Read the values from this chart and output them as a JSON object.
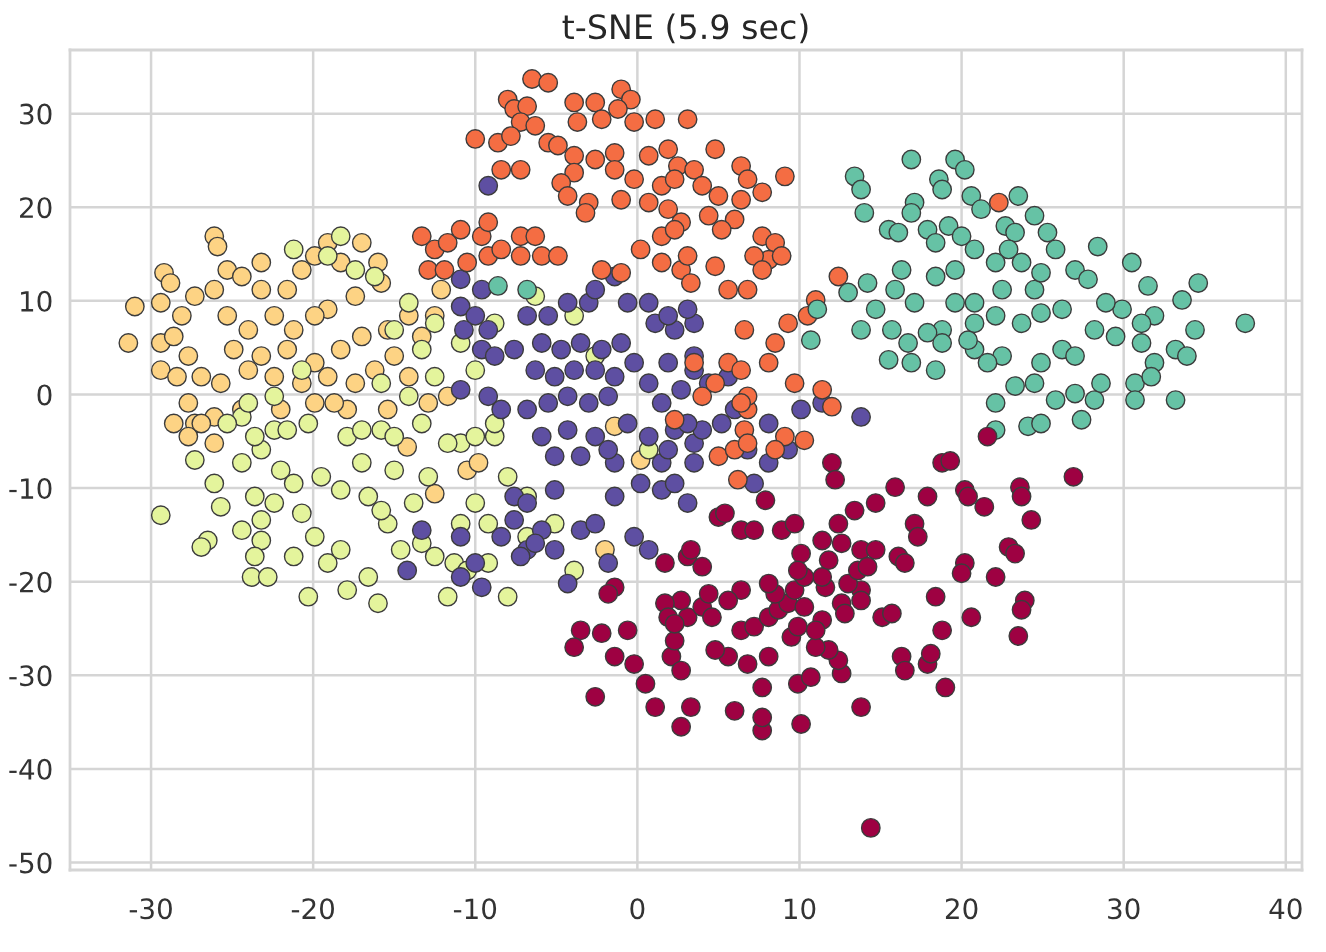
{
  "chart_data": {
    "type": "scatter",
    "title": "t-SNE (5.9 sec)",
    "marker": "circle",
    "grid": true,
    "xlim": [
      -35,
      41
    ],
    "ylim": [
      -50.8,
      36.8
    ],
    "xticks": [
      -30,
      -20,
      -10,
      0,
      10,
      20,
      30,
      40
    ],
    "yticks": [
      -50,
      -40,
      -30,
      -20,
      -10,
      0,
      10,
      20,
      30
    ],
    "series": [
      {
        "color": "#fdd384",
        "x": [
          -26.1,
          -25.9,
          -29.2,
          -28.8,
          -31.0,
          -31.4,
          -29.4,
          -28.1,
          -27.3,
          -26.1,
          -29.4,
          -28.6,
          -29.4,
          -28.4,
          -27.7,
          -27.7,
          -27.3,
          -28.6,
          -25.3,
          -24.4,
          -23.2,
          -23.2,
          -21.6,
          -20.7,
          -19.9,
          -19.1,
          -18.3,
          -17.0,
          -16.0,
          -15.8,
          -17.4,
          -19.1,
          -25.3,
          -24.0,
          -22.4,
          -21.2,
          -19.9,
          -24.9,
          -23.2,
          -21.6,
          -19.9,
          -18.3,
          -17.0,
          -26.9,
          -25.7,
          -24.0,
          -22.4,
          -20.7,
          -19.1,
          -17.4,
          -16.2,
          -15.0,
          -14.1,
          -15.4,
          -14.1,
          -13.3,
          -26.1,
          -24.4,
          -22.0,
          -19.9,
          -17.9,
          -15.4,
          -12.9,
          -11.7,
          -12.5,
          -12.1,
          -27.7,
          -26.1,
          -26.9,
          -18.7,
          -14.2,
          -12.5,
          -10.5,
          -9.8,
          -2.0,
          -1.4,
          0.2
        ],
        "values": [
          16.9,
          15.8,
          13.0,
          11.9,
          9.4,
          5.5,
          9.8,
          8.4,
          10.5,
          11.2,
          5.5,
          6.2,
          2.6,
          1.9,
          4.1,
          -0.9,
          -3.1,
          -3.1,
          13.3,
          12.6,
          14.1,
          11.2,
          11.2,
          13.3,
          14.8,
          16.2,
          14.1,
          16.2,
          14.1,
          11.9,
          10.5,
          9.1,
          8.4,
          6.9,
          8.4,
          6.9,
          8.4,
          4.8,
          4.1,
          4.8,
          3.4,
          4.8,
          6.2,
          1.9,
          1.2,
          2.6,
          1.9,
          1.2,
          1.9,
          1.2,
          2.6,
          4.1,
          1.9,
          6.9,
          8.4,
          6.2,
          -2.4,
          -1.6,
          -1.6,
          -0.9,
          -1.6,
          -1.6,
          -0.9,
          -0.2,
          8.4,
          11.2,
          -4.5,
          -5.2,
          -3.1,
          -0.9,
          -5.6,
          -10.6,
          -8.1,
          -7.3,
          -16.6,
          -3.4,
          -7.0
        ]
      },
      {
        "color": "#e4f49c",
        "x": [
          -29.4,
          -27.3,
          -26.1,
          -25.7,
          -26.5,
          -26.9,
          -24.4,
          -23.2,
          -22.0,
          -23.6,
          -22.4,
          -23.2,
          -24.4,
          -23.2,
          -23.6,
          -23.8,
          -22.8,
          -21.2,
          -20.7,
          -19.9,
          -21.2,
          -20.3,
          -19.1,
          -18.3,
          -17.9,
          -16.6,
          -16.0,
          -19.5,
          -18.3,
          -16.6,
          -15.4,
          -14.6,
          -13.3,
          -12.5,
          -11.3,
          -10.5,
          -9.2,
          -8.0,
          -11.7,
          -3.9,
          -5.1,
          -6.8,
          -9.2,
          -10.9,
          -24.4,
          -22.4,
          -20.3,
          -17.9,
          -15.8,
          -13.3,
          -10.9,
          -8.8,
          -8.0,
          -6.8,
          -10.0,
          -17.0,
          -15.0,
          -12.9,
          -13.8,
          -15.8,
          -21.2,
          -18.3,
          -19.1,
          -17.4,
          -16.2,
          -14.1,
          -12.5,
          -15.0,
          -13.3,
          -10.9,
          -10.0,
          -20.7,
          -22.4,
          -24.0,
          -25.3,
          -23.6,
          -21.6,
          -17.0,
          -15.0,
          -11.7,
          -10.0,
          -8.8,
          -12.5,
          -14.1,
          -15.8,
          -8.8,
          -6.3,
          -3.9,
          -2.6,
          0.7
        ],
        "values": [
          -12.9,
          -7.0,
          -9.5,
          -12.0,
          -15.6,
          -16.3,
          -7.3,
          -5.9,
          -8.1,
          -10.9,
          -11.6,
          -13.4,
          -14.5,
          -15.6,
          -17.3,
          -19.5,
          -19.5,
          -9.5,
          -12.7,
          -15.2,
          -17.3,
          -21.6,
          -18.0,
          -16.6,
          -20.9,
          -19.5,
          -22.3,
          -8.8,
          -10.2,
          -10.9,
          -13.8,
          -16.6,
          -15.9,
          -17.3,
          -18.0,
          -18.8,
          -18.0,
          -21.6,
          -21.6,
          -18.8,
          -13.8,
          -15.2,
          -13.8,
          -13.8,
          -2.4,
          -3.8,
          -3.1,
          -4.5,
          -3.8,
          -3.1,
          -5.2,
          -4.5,
          -8.8,
          -10.9,
          -11.6,
          -7.3,
          -8.1,
          -8.8,
          -11.6,
          -12.4,
          15.5,
          16.9,
          14.8,
          13.3,
          12.6,
          9.8,
          7.6,
          6.9,
          4.8,
          5.5,
          2.6,
          2.6,
          -0.2,
          -0.9,
          -3.1,
          -4.5,
          -3.8,
          -3.8,
          -4.5,
          -5.2,
          -4.5,
          -3.1,
          1.9,
          -0.2,
          1.2,
          7.6,
          10.5,
          8.4,
          4.1,
          -5.9
        ]
      },
      {
        "color": "#5e4fa2",
        "x": [
          -9.2,
          -10.9,
          -9.6,
          -10.9,
          -10.0,
          -10.7,
          -9.2,
          -9.6,
          -8.8,
          -7.6,
          -6.8,
          -5.5,
          -4.3,
          -3.0,
          -2.6,
          -1.4,
          -0.6,
          0.7,
          1.1,
          2.3,
          3.5,
          -5.9,
          -4.7,
          -3.5,
          -2.2,
          -1.0,
          -0.2,
          -1.4,
          -2.6,
          -3.9,
          -5.1,
          -6.3,
          -10.9,
          -9.2,
          -8.4,
          -6.8,
          -5.5,
          -4.3,
          -3.0,
          -1.8,
          0.7,
          1.5,
          2.7,
          3.5,
          -5.9,
          -4.3,
          -2.6,
          -0.6,
          0.7,
          2.3,
          3.5,
          -3.5,
          -1.4,
          1.5,
          -5.1,
          -1.8,
          0.2,
          1.5,
          3.1,
          -7.6,
          -6.8,
          -5.1,
          -5.9,
          -6.8,
          -5.1,
          -3.5,
          -2.6,
          -1.4,
          -0.2,
          0.7,
          -1.8,
          -4.3,
          -13.3,
          -14.2,
          -10.9,
          -10.0,
          -9.6,
          -10.9,
          -7.2,
          -6.3,
          -7.6,
          -8.4,
          1.9,
          3.1,
          1.9,
          3.5,
          4.4,
          5.6,
          6.0,
          4.0,
          5.2,
          6.8,
          10.1,
          11.4,
          13.8,
          8.1,
          3.1,
          1.9,
          3.5,
          2.3,
          7.2,
          8.1,
          9.3
        ],
        "values": [
          22.3,
          12.3,
          11.2,
          9.4,
          8.4,
          6.9,
          6.9,
          4.8,
          4.1,
          4.8,
          8.4,
          8.4,
          9.8,
          9.8,
          11.2,
          12.6,
          9.8,
          9.8,
          7.6,
          6.9,
          7.6,
          5.5,
          4.8,
          5.5,
          4.8,
          5.5,
          3.4,
          1.9,
          2.6,
          2.6,
          1.9,
          2.6,
          0.5,
          -0.2,
          -1.6,
          -1.6,
          -0.9,
          -0.2,
          -0.9,
          -0.2,
          1.2,
          -0.9,
          0.5,
          2.6,
          -4.5,
          -3.8,
          -4.5,
          -3.1,
          -4.5,
          -3.8,
          -5.2,
          -6.6,
          -7.3,
          -7.3,
          -6.6,
          -5.9,
          -9.5,
          -10.2,
          -11.6,
          -10.9,
          -11.6,
          -10.2,
          -14.5,
          -16.6,
          -16.6,
          -14.5,
          -13.8,
          -10.9,
          -15.2,
          -16.6,
          -18.0,
          -20.2,
          -14.5,
          -18.8,
          -15.2,
          -18.0,
          -20.6,
          -19.5,
          -17.3,
          -15.9,
          -13.4,
          -15.2,
          8.4,
          9.1,
          3.4,
          4.1,
          1.2,
          1.9,
          -1.6,
          -3.8,
          -3.1,
          -5.9,
          -1.6,
          -0.9,
          -2.4,
          -3.1,
          -3.1,
          -5.9,
          -7.3,
          -9.5,
          -9.5,
          -7.3,
          -5.9
        ]
      },
      {
        "color": "#f46d43",
        "x": [
          -6.5,
          -5.5,
          -8.0,
          -7.6,
          -6.8,
          -7.2,
          -6.3,
          -10.0,
          -8.6,
          -7.8,
          -5.5,
          -4.9,
          -3.9,
          -2.6,
          -3.7,
          -2.2,
          -1.0,
          -0.4,
          -1.2,
          -0.2,
          1.1,
          3.1,
          -3.9,
          -2.6,
          -1.4,
          -3.9,
          -7.2,
          -8.4,
          -4.7,
          -4.3,
          -3.0,
          -3.2,
          -1.4,
          -0.2,
          -1.0,
          0.7,
          1.9,
          2.5,
          1.5,
          0.7,
          1.9,
          2.7,
          1.5,
          0.2,
          1.5,
          2.7,
          -2.2,
          -1.0,
          -13.3,
          -12.5,
          -11.7,
          -12.9,
          -11.9,
          -10.9,
          -9.6,
          -9.2,
          -10.5,
          -9.2,
          -8.4,
          -7.2,
          -6.3,
          -5.9,
          -4.9,
          -7.2,
          3.1,
          3.3,
          3.5,
          4.8,
          2.3,
          4.0,
          5.0,
          6.4,
          6.8,
          7.7,
          6.4,
          6.0,
          5.2,
          4.4,
          2.3,
          9.1,
          7.7,
          8.5,
          8.1,
          7.2,
          8.9,
          7.7,
          4.8,
          5.6,
          6.8,
          22.3,
          12.4,
          11.0,
          10.5,
          9.3,
          8.5,
          6.6,
          5.6,
          6.4,
          8.1,
          6.8,
          6.8,
          9.7,
          11.4,
          12.0,
          9.1,
          8.5,
          10.3,
          3.5,
          4.0,
          4.8,
          2.3,
          5.0,
          6.0,
          6.4,
          6.6,
          6.8,
          6.2
        ],
        "values": [
          33.7,
          33.3,
          31.5,
          30.5,
          30.8,
          29.1,
          28.7,
          27.3,
          26.9,
          27.6,
          26.9,
          26.6,
          31.2,
          31.2,
          29.1,
          29.4,
          32.6,
          31.5,
          30.5,
          29.1,
          29.4,
          29.4,
          25.5,
          25.1,
          25.8,
          23.7,
          24.0,
          24.0,
          22.6,
          21.2,
          20.5,
          19.4,
          24.0,
          23.0,
          20.8,
          25.5,
          26.2,
          24.4,
          22.3,
          20.5,
          19.8,
          18.4,
          16.9,
          15.5,
          14.1,
          13.3,
          13.3,
          13.0,
          16.9,
          15.5,
          16.2,
          13.3,
          13.3,
          17.6,
          16.9,
          18.4,
          14.1,
          14.8,
          15.5,
          16.9,
          16.9,
          14.8,
          14.8,
          14.8,
          14.8,
          11.9,
          24.0,
          26.2,
          23.0,
          22.3,
          21.2,
          24.4,
          23.0,
          21.6,
          20.8,
          18.7,
          17.6,
          19.1,
          17.6,
          23.3,
          16.9,
          16.2,
          14.4,
          14.8,
          14.8,
          13.3,
          13.7,
          11.2,
          11.2,
          20.5,
          12.6,
          10.1,
          8.4,
          7.6,
          5.5,
          6.9,
          3.4,
          2.6,
          3.4,
          -1.6,
          -0.2,
          1.2,
          0.5,
          -1.3,
          -4.5,
          -5.9,
          -4.9,
          3.4,
          -0.2,
          1.2,
          -2.7,
          -6.6,
          -5.9,
          -0.9,
          -3.8,
          -5.2,
          -9.1
        ]
      },
      {
        "color": "#66c2a5",
        "x": [
          16.9,
          13.4,
          13.8,
          19.6,
          20.2,
          18.6,
          18.8,
          17.1,
          16.9,
          20.6,
          21.2,
          23.5,
          24.5,
          14.0,
          15.5,
          16.1,
          17.9,
          19.2,
          18.4,
          20.0,
          20.8,
          22.7,
          23.3,
          25.3,
          25.8,
          22.9,
          28.4,
          30.5,
          27.0,
          27.8,
          34.6,
          31.5,
          33.6,
          37.5,
          34.4,
          33.2,
          33.9,
          31.9,
          31.1,
          29.9,
          29.5,
          28.2,
          28.9,
          31.1,
          31.9,
          30.7,
          31.7,
          33.2,
          30.7,
          28.2,
          28.6,
          27.0,
          27.4,
          26.2,
          27.0,
          24.9,
          24.5,
          25.8,
          24.1,
          24.9,
          22.1,
          23.3,
          22.5,
          20.8,
          21.6,
          20.4,
          18.4,
          16.9,
          15.5,
          20.8,
          22.1,
          23.7,
          24.9,
          26.2,
          24.5,
          22.5,
          20.8,
          19.6,
          18.8,
          17.1,
          15.9,
          16.3,
          18.4,
          19.6,
          22.1,
          23.7,
          24.9,
          14.2,
          13.0,
          11.1,
          10.7,
          13.8,
          14.7,
          15.7,
          16.7,
          17.9,
          18.8,
          -8.6,
          -6.8,
          22.1
        ],
        "values": [
          25.1,
          23.3,
          21.9,
          25.1,
          24.0,
          23.0,
          21.9,
          20.5,
          19.4,
          21.2,
          19.8,
          21.2,
          19.1,
          19.4,
          17.6,
          17.3,
          17.6,
          18.0,
          16.2,
          16.9,
          15.5,
          18.0,
          17.3,
          17.3,
          15.5,
          15.5,
          15.8,
          14.1,
          13.3,
          12.3,
          11.9,
          11.6,
          10.1,
          7.6,
          6.9,
          4.8,
          4.1,
          8.4,
          7.6,
          9.1,
          6.2,
          6.9,
          9.8,
          5.5,
          3.4,
          1.2,
          1.9,
          -0.6,
          -0.6,
          -0.6,
          1.2,
          0.1,
          -2.7,
          4.8,
          4.1,
          3.4,
          1.2,
          -0.6,
          -3.4,
          -3.1,
          -0.9,
          0.9,
          4.1,
          4.8,
          3.4,
          5.8,
          2.6,
          3.4,
          3.7,
          7.6,
          8.4,
          7.6,
          8.7,
          9.1,
          11.2,
          11.2,
          9.8,
          9.8,
          6.9,
          9.8,
          11.2,
          13.3,
          12.6,
          13.3,
          14.1,
          14.1,
          13.0,
          11.9,
          10.9,
          9.1,
          5.8,
          6.9,
          9.1,
          6.9,
          5.5,
          6.6,
          5.5,
          11.6,
          11.2,
          -3.8
        ]
      },
      {
        "color": "#9e0142",
        "x": [
          21.6,
          26.9,
          12.0,
          12.2,
          18.8,
          19.3,
          15.9,
          14.7,
          17.9,
          20.2,
          20.4,
          21.4,
          23.6,
          23.7,
          24.3,
          22.9,
          23.3,
          23.9,
          23.7,
          23.5,
          22.1,
          20.6,
          20.2,
          20.0,
          18.8,
          19.0,
          17.9,
          18.1,
          16.3,
          16.5,
          17.1,
          17.3,
          18.4,
          15.1,
          15.7,
          13.8,
          13.8,
          16.1,
          16.5,
          13.8,
          14.4,
          12.6,
          12.4,
          11.8,
          10.1,
          9.9,
          7.7,
          7.7,
          6.0,
          3.3,
          2.7,
          7.7,
          10.7,
          11.0,
          9.5,
          9.9,
          8.1,
          6.8,
          5.6,
          4.8,
          2.1,
          2.7,
          2.3,
          3.1,
          4.0,
          4.6,
          6.4,
          7.2,
          8.1,
          8.7,
          9.3,
          10.3,
          11.4,
          11.0,
          12.6,
          12.8,
          13.0,
          13.6,
          11.6,
          11.4,
          9.7,
          10.3,
          8.5,
          8.1,
          6.4,
          5.6,
          4.4,
          2.7,
          1.7,
          1.9,
          3.1,
          4.0,
          5.0,
          5.4,
          6.4,
          7.2,
          8.9,
          9.7,
          10.1,
          9.9,
          11.4,
          11.8,
          12.4,
          12.6,
          13.4,
          13.8,
          14.7,
          14.2,
          7.9,
          3.3,
          1.7,
          -1.4,
          -1.8,
          2.3,
          -3.5,
          -3.9,
          -2.2,
          -0.6,
          -1.4,
          -0.2,
          -2.6,
          0.5,
          1.1
        ],
        "values": [
          -4.5,
          -8.8,
          -7.3,
          -9.1,
          -7.3,
          -7.1,
          -9.9,
          -11.6,
          -10.9,
          -10.2,
          -10.9,
          -12.0,
          -9.9,
          -10.9,
          -13.4,
          -16.3,
          -17.0,
          -22.0,
          -23.0,
          -25.8,
          -19.5,
          -23.8,
          -18.0,
          -19.1,
          -25.2,
          -31.3,
          -28.8,
          -27.7,
          -28.0,
          -29.5,
          -13.8,
          -15.2,
          -21.6,
          -23.8,
          -23.4,
          -20.9,
          -22.0,
          -17.3,
          -18.0,
          -33.4,
          -46.3,
          -29.8,
          -28.4,
          -27.3,
          -35.2,
          -30.9,
          -35.9,
          -34.5,
          -33.8,
          -33.4,
          -35.5,
          -31.3,
          -30.2,
          -27.0,
          -25.9,
          -24.8,
          -28.0,
          -28.8,
          -28.0,
          -27.3,
          -28.0,
          -29.5,
          -26.3,
          -23.8,
          -22.7,
          -23.8,
          -25.2,
          -24.8,
          -23.8,
          -23.0,
          -22.3,
          -22.7,
          -24.1,
          -25.2,
          -22.3,
          -23.4,
          -20.2,
          -18.8,
          -20.6,
          -19.5,
          -20.9,
          -19.5,
          -21.3,
          -20.2,
          -20.9,
          -22.0,
          -21.3,
          -22.0,
          -22.3,
          -23.8,
          -17.3,
          -18.4,
          -13.1,
          -12.7,
          -14.5,
          -14.5,
          -14.5,
          -13.8,
          -17.0,
          -18.8,
          -15.6,
          -17.7,
          -13.8,
          -15.9,
          -12.4,
          -16.6,
          -16.6,
          -18.4,
          -11.3,
          -16.6,
          -18.0,
          -20.6,
          -21.3,
          -24.5,
          -25.2,
          -27.0,
          -25.5,
          -25.2,
          -28.0,
          -28.8,
          -32.3,
          -30.9,
          -33.4
        ]
      }
    ]
  }
}
